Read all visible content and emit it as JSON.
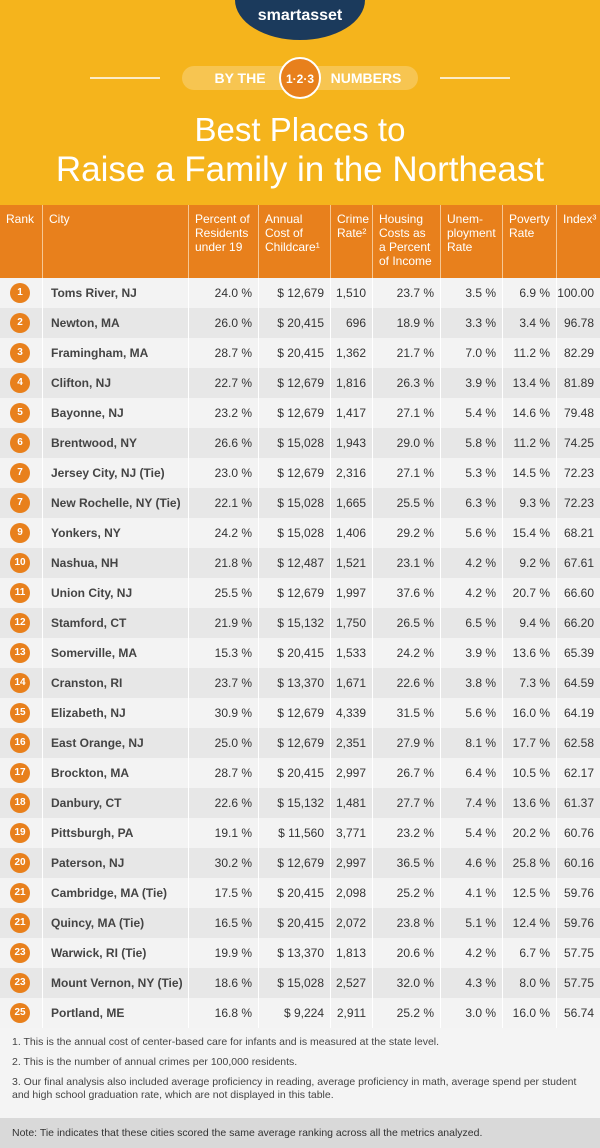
{
  "header": {
    "logo": "smartasset",
    "kicker_left": "BY THE",
    "kicker_mid": "1·2·3",
    "kicker_right": "NUMBERS",
    "title_line1": "Best Places to",
    "title_line2": "Raise a Family in the Northeast"
  },
  "table": {
    "columns": [
      [
        "Rank"
      ],
      [
        "City"
      ],
      [
        "Percent of",
        "Residents",
        "under 19"
      ],
      [
        "Annual",
        "Cost of",
        "Childcare¹"
      ],
      [
        "Crime",
        "Rate²"
      ],
      [
        "Housing",
        "Costs as",
        "a Percent",
        "of Income"
      ],
      [
        "Unem-",
        "ployment",
        "Rate"
      ],
      [
        "Poverty",
        "Rate"
      ],
      [
        "Index³"
      ]
    ],
    "rows": [
      [
        "1",
        "Toms River, NJ",
        "24.0 %",
        "$ 12,679",
        "1,510",
        "23.7 %",
        "3.5 %",
        "6.9 %",
        "100.00"
      ],
      [
        "2",
        "Newton, MA",
        "26.0 %",
        "$ 20,415",
        "696",
        "18.9 %",
        "3.3 %",
        "3.4 %",
        "96.78"
      ],
      [
        "3",
        "Framingham, MA",
        "28.7 %",
        "$ 20,415",
        "1,362",
        "21.7 %",
        "7.0 %",
        "11.2 %",
        "82.29"
      ],
      [
        "4",
        "Clifton, NJ",
        "22.7 %",
        "$ 12,679",
        "1,816",
        "26.3 %",
        "3.9 %",
        "13.4 %",
        "81.89"
      ],
      [
        "5",
        "Bayonne, NJ",
        "23.2 %",
        "$ 12,679",
        "1,417",
        "27.1 %",
        "5.4 %",
        "14.6 %",
        "79.48"
      ],
      [
        "6",
        "Brentwood, NY",
        "26.6 %",
        "$ 15,028",
        "1,943",
        "29.0 %",
        "5.8 %",
        "11.2 %",
        "74.25"
      ],
      [
        "7",
        "Jersey City, NJ (Tie)",
        "23.0 %",
        "$ 12,679",
        "2,316",
        "27.1 %",
        "5.3 %",
        "14.5 %",
        "72.23"
      ],
      [
        "7",
        "New Rochelle, NY (Tie)",
        "22.1 %",
        "$ 15,028",
        "1,665",
        "25.5 %",
        "6.3 %",
        "9.3 %",
        "72.23"
      ],
      [
        "9",
        "Yonkers, NY",
        "24.2 %",
        "$ 15,028",
        "1,406",
        "29.2 %",
        "5.6 %",
        "15.4 %",
        "68.21"
      ],
      [
        "10",
        "Nashua, NH",
        "21.8 %",
        "$ 12,487",
        "1,521",
        "23.1 %",
        "4.2 %",
        "9.2 %",
        "67.61"
      ],
      [
        "11",
        "Union City, NJ",
        "25.5 %",
        "$ 12,679",
        "1,997",
        "37.6 %",
        "4.2 %",
        "20.7 %",
        "66.60"
      ],
      [
        "12",
        "Stamford, CT",
        "21.9 %",
        "$ 15,132",
        "1,750",
        "26.5 %",
        "6.5 %",
        "9.4 %",
        "66.20"
      ],
      [
        "13",
        "Somerville, MA",
        "15.3 %",
        "$ 20,415",
        "1,533",
        "24.2 %",
        "3.9 %",
        "13.6 %",
        "65.39"
      ],
      [
        "14",
        "Cranston, RI",
        "23.7 %",
        "$ 13,370",
        "1,671",
        "22.6 %",
        "3.8 %",
        "7.3 %",
        "64.59"
      ],
      [
        "15",
        "Elizabeth, NJ",
        "30.9 %",
        "$ 12,679",
        "4,339",
        "31.5 %",
        "5.6 %",
        "16.0 %",
        "64.19"
      ],
      [
        "16",
        "East Orange, NJ",
        "25.0 %",
        "$ 12,679",
        "2,351",
        "27.9 %",
        "8.1 %",
        "17.7 %",
        "62.58"
      ],
      [
        "17",
        "Brockton, MA",
        "28.7 %",
        "$ 20,415",
        "2,997",
        "26.7 %",
        "6.4 %",
        "10.5 %",
        "62.17"
      ],
      [
        "18",
        "Danbury, CT",
        "22.6 %",
        "$ 15,132",
        "1,481",
        "27.7 %",
        "7.4 %",
        "13.6 %",
        "61.37"
      ],
      [
        "19",
        "Pittsburgh, PA",
        "19.1 %",
        "$ 11,560",
        "3,771",
        "23.2 %",
        "5.4 %",
        "20.2 %",
        "60.76"
      ],
      [
        "20",
        "Paterson, NJ",
        "30.2 %",
        "$ 12,679",
        "2,997",
        "36.5 %",
        "4.6 %",
        "25.8 %",
        "60.16"
      ],
      [
        "21",
        "Cambridge, MA (Tie)",
        "17.5 %",
        "$ 20,415",
        "2,098",
        "25.2 %",
        "4.1 %",
        "12.5 %",
        "59.76"
      ],
      [
        "21",
        "Quincy, MA (Tie)",
        "16.5 %",
        "$ 20,415",
        "2,072",
        "23.8 %",
        "5.1 %",
        "12.4 %",
        "59.76"
      ],
      [
        "23",
        "Warwick, RI (Tie)",
        "19.9 %",
        "$ 13,370",
        "1,813",
        "20.6 %",
        "4.2 %",
        "6.7 %",
        "57.75"
      ],
      [
        "23",
        "Mount Vernon, NY (Tie)",
        "18.6 %",
        "$ 15,028",
        "2,527",
        "32.0 %",
        "4.3 %",
        "8.0 %",
        "57.75"
      ],
      [
        "25",
        "Portland, ME",
        "16.8 %",
        "$ 9,224",
        "2,911",
        "25.2 %",
        "3.0 %",
        "16.0 %",
        "56.74"
      ]
    ]
  },
  "footnotes": [
    "1. This is the annual cost of center-based care for infants and is measured at the state level.",
    "2. This is the number of annual crimes per 100,000 residents.",
    "3. Our final analysis also included average proficiency in reading, average proficiency in math, average spend per student and high school graduation rate, which are not displayed in this table."
  ],
  "note": "Note: Tie indicates that these cities scored the same average ranking across all the metrics analyzed."
}
